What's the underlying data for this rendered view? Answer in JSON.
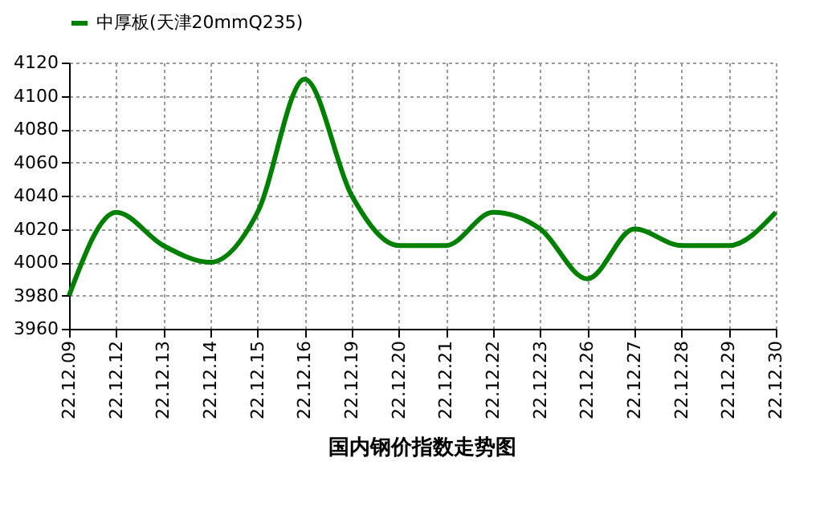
{
  "chart_data": {
    "type": "line",
    "title": "国内钢价指数走势图",
    "categories": [
      "22.12.09",
      "22.12.12",
      "22.12.13",
      "22.12.14",
      "22.12.15",
      "22.12.16",
      "22.12.19",
      "22.12.20",
      "22.12.21",
      "22.12.22",
      "22.12.23",
      "22.12.26",
      "22.12.27",
      "22.12.28",
      "22.12.29",
      "22.12.30"
    ],
    "series": [
      {
        "name": "中厚板(天津20mmQ235)",
        "color": "#008000",
        "values": [
          3980,
          4030,
          4010,
          4000,
          4030,
          4110,
          4040,
          4010,
          4010,
          4030,
          4020,
          3990,
          4020,
          4010,
          4010,
          4030
        ]
      }
    ],
    "ylim": [
      3960,
      4120
    ],
    "yticks": [
      3960,
      3980,
      4000,
      4020,
      4040,
      4060,
      4080,
      4100,
      4120
    ],
    "grid": true,
    "legend": "top",
    "marker": "none",
    "line_style": "solid"
  }
}
